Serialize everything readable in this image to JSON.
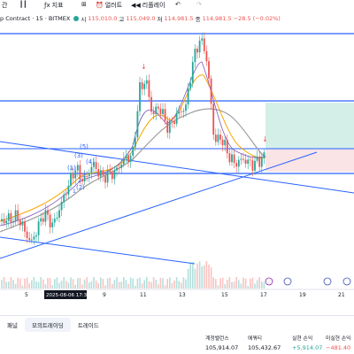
{
  "toolbar": {
    "items": [
      {
        "icon": "clock-icon",
        "label": "간"
      },
      {
        "icon": "candles-icon",
        "label": ""
      },
      {
        "icon": "indicators-icon",
        "label": "지표"
      },
      {
        "icon": "templates-icon",
        "label": ""
      },
      {
        "icon": "alert-icon",
        "label": "얼러트"
      },
      {
        "icon": "replay-icon",
        "label": "리플레이"
      },
      {
        "icon": "undo-icon",
        "label": ""
      },
      {
        "icon": "redo-icon",
        "label": ""
      }
    ]
  },
  "legend": {
    "symbol": "p Contract · 15 · BITMEX",
    "open_label": "시",
    "open": "115,010.0",
    "high_label": "고",
    "high": "115,049.0",
    "low_label": "저",
    "low": "114,981.5",
    "close_label": "종",
    "close": "114,981.5",
    "change": "−28.5 (−0.02%)"
  },
  "annotations": {
    "wave_labels": [
      "(1)",
      "(2)",
      "(3)",
      "(4)",
      "(5)",
      "1",
      "2",
      "3"
    ]
  },
  "xaxis": {
    "labels": [
      "5",
      "9",
      "11",
      "13",
      "15",
      "17",
      "19",
      "21"
    ],
    "crosshair_label": "2025-08-06   17:30"
  },
  "bottom_tabs": [
    "패널",
    "모의트레이딩",
    "트레이드"
  ],
  "stats": [
    {
      "label": "계정밸런스",
      "value": "105,914.07",
      "kind": "normal"
    },
    {
      "label": "에쿼티",
      "value": "105,432.67",
      "kind": "normal"
    },
    {
      "label": "실현 손익",
      "value": "+5,914.07",
      "kind": "pos"
    },
    {
      "label": "미실현 손익",
      "value": "−481.40",
      "kind": "neg"
    }
  ],
  "colors": {
    "up": "#26a69a",
    "down": "#ef5350",
    "trendline": "#2962ff",
    "tp_zone": "#d4efe8",
    "sl_zone": "#fbe4e6"
  }
}
